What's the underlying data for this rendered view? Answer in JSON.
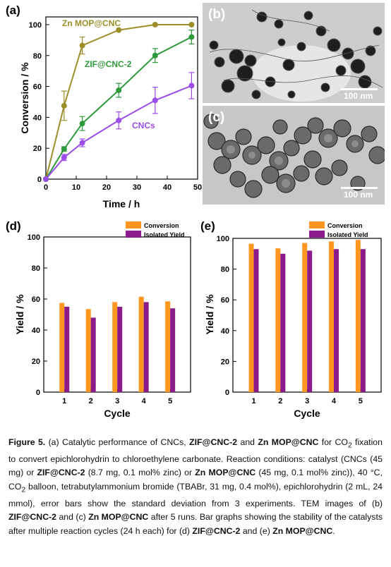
{
  "panel_a": {
    "label": "(a)",
    "curve_labels": [
      "Zn MOP@CNC",
      "ZIF@CNC-2",
      "CNCs"
    ]
  },
  "panel_b": {
    "label": "(b)",
    "scale": "100 nm"
  },
  "panel_c": {
    "label": "(c)",
    "scale": "100 nm"
  },
  "panel_d": {
    "label": "(d)"
  },
  "panel_e": {
    "label": "(e)"
  },
  "colors": {
    "zn_mop": "#9c8f2a",
    "zif": "#2e9a3c",
    "cncs": "#9b4de8",
    "conversion_bar": "#ff9620",
    "isolated_bar": "#8b1a8a"
  },
  "chart_data": [
    {
      "type": "line",
      "xlabel": "Time / h",
      "ylabel": "Conversion / %",
      "xlim": [
        0,
        50
      ],
      "ylim": [
        0,
        105
      ],
      "xticks": [
        "0",
        "10",
        "20",
        "30",
        "40",
        "50"
      ],
      "yticks": [
        "0",
        "20",
        "40",
        "60",
        "80",
        "100"
      ],
      "grid": false,
      "x": [
        0,
        6,
        12,
        24,
        36,
        48
      ],
      "series": [
        {
          "name": "Zn MOP@CNC",
          "values": [
            0,
            47.5,
            86.5,
            96.5,
            100,
            100
          ],
          "errors": [
            0,
            9.5,
            5.5,
            0,
            0,
            0
          ]
        },
        {
          "name": "ZIF@CNC-2",
          "values": [
            0,
            19.5,
            36,
            57.5,
            80,
            92
          ],
          "errors": [
            0,
            1.5,
            4.5,
            4.5,
            4.5,
            4.5
          ]
        },
        {
          "name": "CNCs",
          "values": [
            0,
            14,
            23.5,
            38,
            51,
            60.5
          ],
          "errors": [
            0,
            2,
            2.5,
            5.5,
            8.5,
            8.5
          ]
        }
      ]
    },
    {
      "type": "bar",
      "xlabel": "Cycle",
      "ylabel": "Yield / %",
      "ylim": [
        0,
        100
      ],
      "yticks": [
        "0",
        "20",
        "40",
        "60",
        "80",
        "100"
      ],
      "categories": [
        "1",
        "2",
        "3",
        "4",
        "5"
      ],
      "legend": "top-right",
      "series": [
        {
          "name": "Conversion",
          "values": [
            57.5,
            53.5,
            58,
            61.5,
            58.5
          ]
        },
        {
          "name": "Isolated Yield",
          "values": [
            55,
            48,
            55,
            58,
            54
          ]
        }
      ]
    },
    {
      "type": "bar",
      "xlabel": "Cycle",
      "ylabel": "Yield / %",
      "ylim": [
        0,
        100
      ],
      "yticks": [
        "0",
        "20",
        "40",
        "60",
        "80",
        "100"
      ],
      "categories": [
        "1",
        "2",
        "3",
        "4",
        "5"
      ],
      "legend": "top-right",
      "series": [
        {
          "name": "Conversion",
          "values": [
            96.5,
            93.5,
            97,
            98,
            99
          ]
        },
        {
          "name": "Isolated Yield",
          "values": [
            93,
            90,
            92,
            93,
            93
          ]
        }
      ]
    }
  ],
  "caption": {
    "figure_label": "Figure 5.",
    "t1": " (a) Catalytic performance of CNCs, ",
    "b1": "ZIF@CNC-2",
    "t2": " and ",
    "b2": "Zn MOP@CNC",
    "t3": " for CO",
    "sub1": "2",
    "t4": " fixation to convert epichlorohydrin to chloroethylene carbonate. Reaction conditions: catalyst (CNCs (45 mg) or ",
    "b3": "ZIF@CNC-2",
    "t5": " (8.7 mg, 0.1 mol% zinc) or ",
    "b4": "Zn MOP@CNC",
    "t6": " (45 mg, 0.1 mol% zinc)), 40 °C, CO",
    "sub2": "2",
    "t7": " balloon, tetrabutylammonium bromide (TBABr, 31 mg, 0.4 mol%), epichlorohydrin (2 mL, 24 mmol), error bars show the standard deviation from 3 experiments. TEM images of (b) ",
    "b5": "ZIF@CNC-2",
    "t8": " and (c) ",
    "b6": "Zn MOP@CNC",
    "t9": " after 5 runs. Bar graphs showing the stability of the catalysts after multiple reaction cycles (24 h each) for (d) ",
    "b7": "ZIF@CNC-2",
    "t10": " and (e) ",
    "b8": "Zn MOP@CNC",
    "t11": "."
  }
}
